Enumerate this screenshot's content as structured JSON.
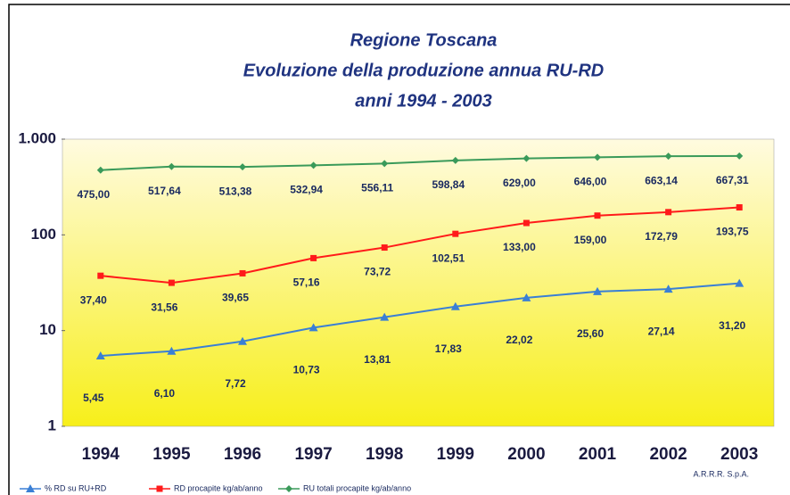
{
  "chart_data": {
    "type": "line",
    "title": "Regione Toscana",
    "subtitle": [
      "Evoluzione della produzione annua RU-RD",
      "anni 1994 - 2003"
    ],
    "annotation": "A.R.R.R. S.p.A.",
    "categories": [
      "1994",
      "1995",
      "1996",
      "1997",
      "1998",
      "1999",
      "2000",
      "2001",
      "2002",
      "2003"
    ],
    "log_scale": true,
    "grid": false,
    "legend": "bottom",
    "ylim": [
      1,
      1000
    ],
    "yticks": [
      1,
      10,
      100,
      {
        "value": 1000,
        "label": "1.000"
      }
    ],
    "series": [
      {
        "name": "% RD su RU+RD",
        "color": "#3a7fd5",
        "marker": "triangle",
        "values": [
          5.45,
          6.1,
          7.72,
          10.73,
          13.81,
          17.83,
          22.02,
          25.6,
          27.14,
          31.2
        ],
        "value_labels": [
          "5,45",
          "6,10",
          "7,72",
          "10,73",
          "13,81",
          "17,83",
          "22,02",
          "25,60",
          "27,14",
          "31,20"
        ]
      },
      {
        "name": "RD procapite  kg/ab/anno",
        "color": "#ff1a1a",
        "marker": "square",
        "values": [
          37.4,
          31.56,
          39.65,
          57.16,
          73.72,
          102.51,
          133.0,
          159.0,
          172.79,
          193.75
        ],
        "value_labels": [
          "37,40",
          "31,56",
          "39,65",
          "57,16",
          "73,72",
          "102,51",
          "133,00",
          "159,00",
          "172,79",
          "193,75"
        ]
      },
      {
        "name": "RU totali procapite  kg/ab/anno",
        "color": "#3a9a5a",
        "marker": "diamond",
        "values": [
          475.0,
          517.64,
          513.38,
          532.94,
          556.11,
          598.84,
          629.0,
          646.0,
          663.14,
          667.31
        ],
        "value_labels": [
          "475,00",
          "517,64",
          "513,38",
          "532,94",
          "556,11",
          "598,84",
          "629,00",
          "646,00",
          "663,14",
          "667,31"
        ]
      }
    ]
  }
}
